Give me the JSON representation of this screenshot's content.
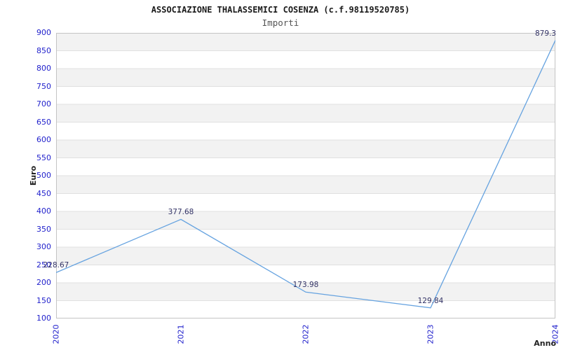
{
  "header": {
    "title": "ASSOCIAZIONE THALASSEMICI COSENZA (c.f.98119520785)",
    "subtitle": "Importi"
  },
  "chart_data": {
    "type": "line",
    "x": [
      "2020",
      "2021",
      "2022",
      "2023",
      "2024"
    ],
    "values": [
      228.67,
      377.68,
      173.98,
      129.84,
      879.3
    ],
    "point_labels": [
      "228.67",
      "377.68",
      "173.98",
      "129.84",
      "879.3"
    ],
    "title": "ASSOCIAZIONE THALASSEMICI COSENZA (c.f.98119520785)",
    "subtitle": "Importi",
    "xlabel": "Anno",
    "ylabel": "Euro",
    "ylim": [
      100,
      900
    ],
    "ytick_step": 50,
    "grid": "horizontal-bands",
    "legend": "none",
    "colors": {
      "line": "#66a3e0",
      "tick_label": "#2222cc",
      "point_label": "#333366",
      "band_alt": "#f2f2f2",
      "band_main": "#ffffff",
      "gridline": "#e0e0e0",
      "plot_border": "#c4c4c4",
      "title": "#1a1a1a",
      "subtitle": "#555555",
      "axis_title": "#222222"
    }
  }
}
